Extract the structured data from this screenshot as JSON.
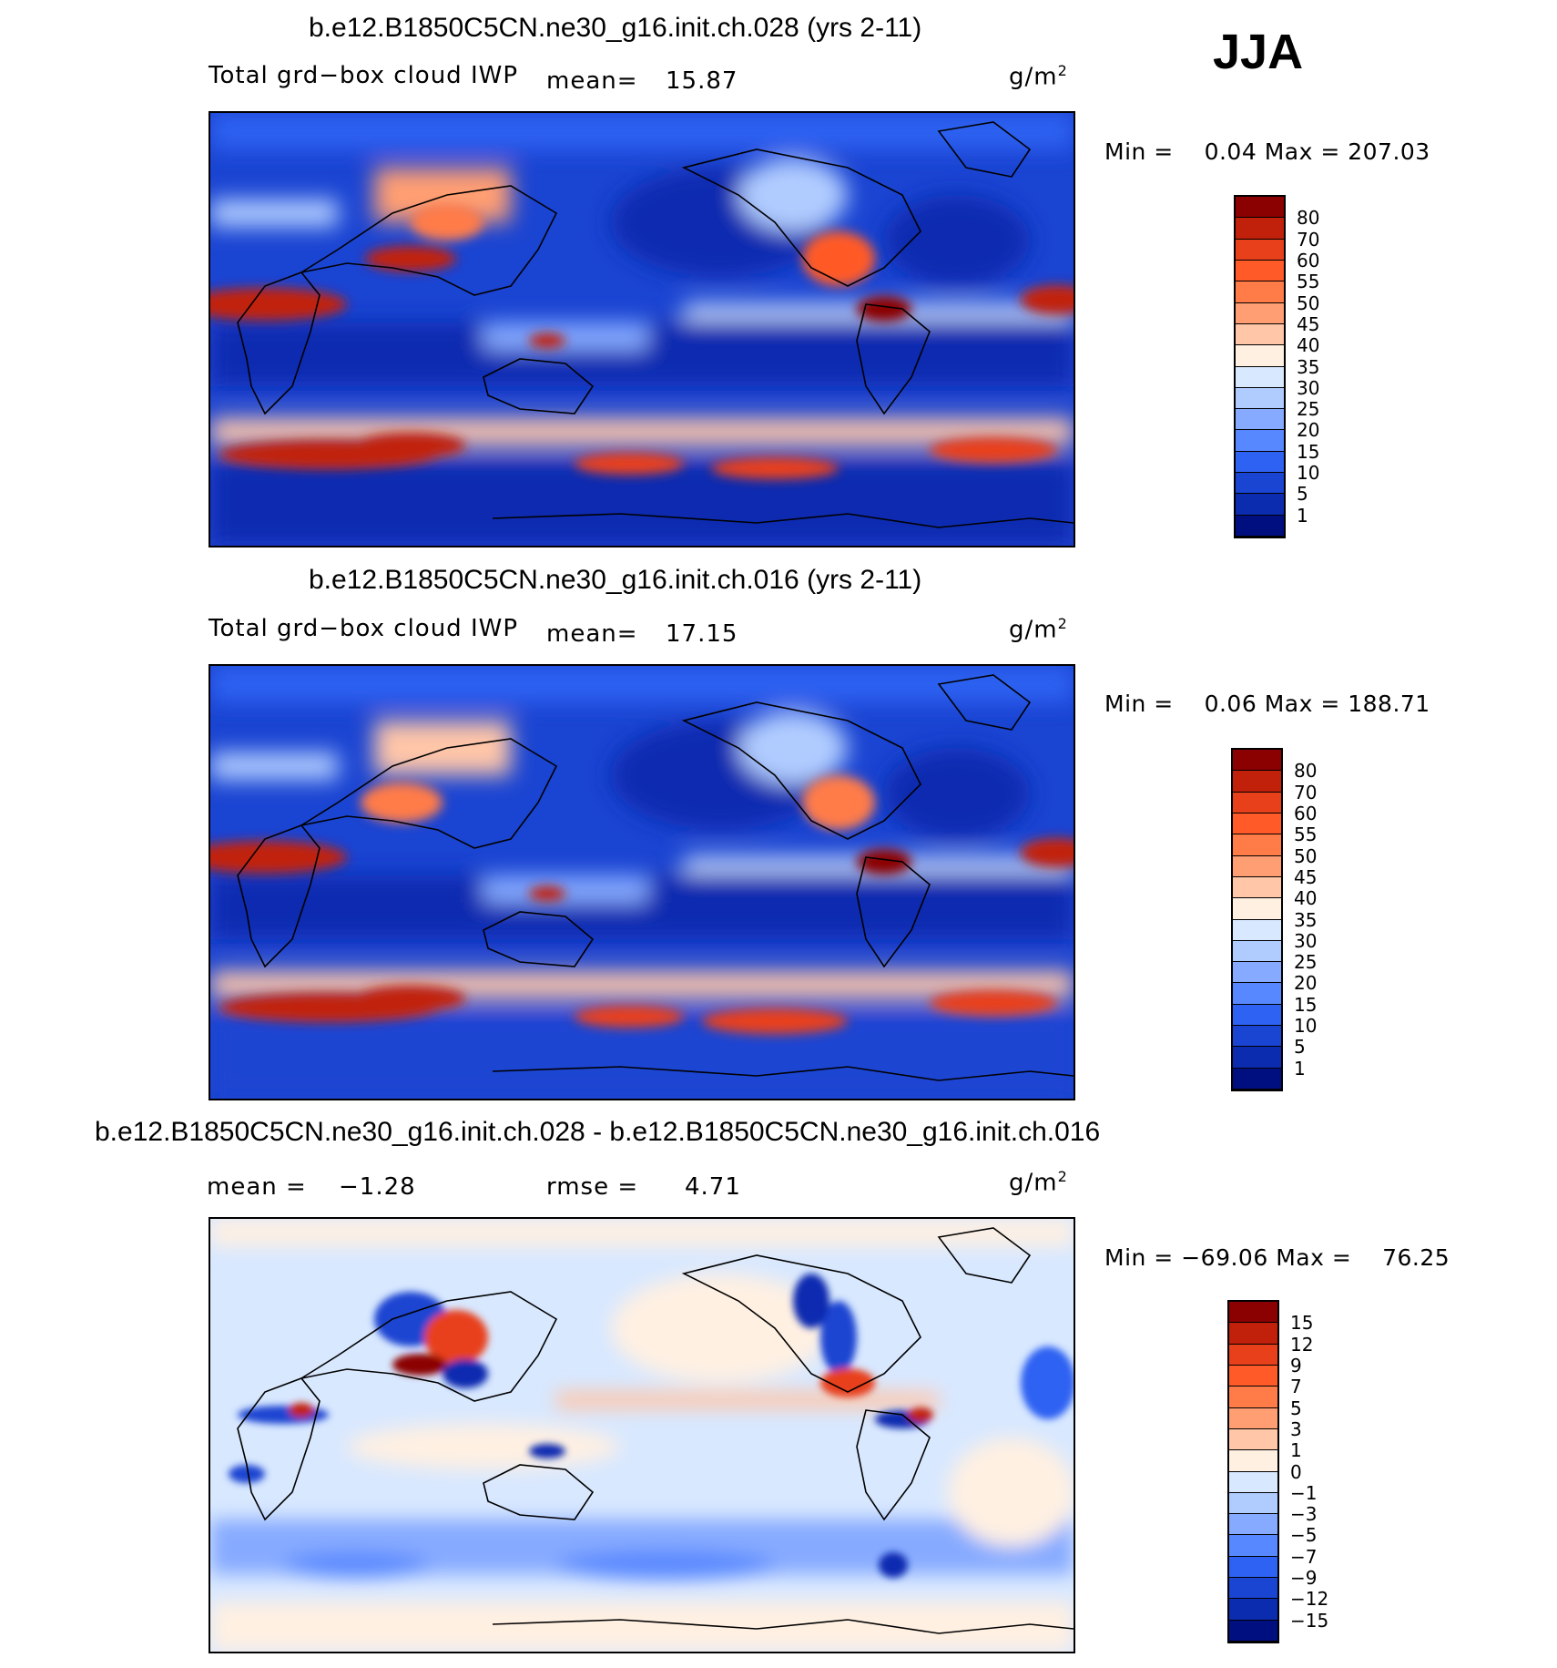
{
  "season": "JJA",
  "panels": [
    {
      "title": "b.e12.B1850C5CN.ne30_g16.init.ch.028 (yrs 2-11)",
      "variable": "Total grd−box cloud IWP",
      "mean_label": "mean=",
      "mean_value": "15.87",
      "stat2_label": "",
      "stat2_value": "",
      "units": "g/m",
      "units_sup": "2",
      "min_label": "Min =",
      "min_value": "0.04",
      "max_label": "Max =",
      "max_value": "207.03"
    },
    {
      "title": "b.e12.B1850C5CN.ne30_g16.init.ch.016 (yrs 2-11)",
      "variable": "Total grd−box cloud IWP",
      "mean_label": "mean=",
      "mean_value": "17.15",
      "stat2_label": "",
      "stat2_value": "",
      "units": "g/m",
      "units_sup": "2",
      "min_label": "Min =",
      "min_value": "0.06",
      "max_label": "Max =",
      "max_value": "188.71"
    },
    {
      "title": "b.e12.B1850C5CN.ne30_g16.init.ch.028 - b.e12.B1850C5CN.ne30_g16.init.ch.016",
      "variable": "",
      "mean_label": "mean =",
      "mean_value": "−1.28",
      "stat2_label": "rmse =",
      "stat2_value": "4.71",
      "units": "g/m",
      "units_sup": "2",
      "min_label": "Min =",
      "min_value": "−69.06",
      "max_label": "Max =",
      "max_value": "76.25"
    }
  ],
  "chart_data": [
    {
      "type": "heatmap",
      "title": "b.e12.B1850C5CN.ne30_g16.init.ch.028 (yrs 2-11)",
      "field": "Total grd-box cloud IWP",
      "units": "g/m2",
      "mean": 15.87,
      "min": 0.04,
      "max": 207.03,
      "colorbar_levels": [
        "80",
        "70",
        "60",
        "55",
        "50",
        "45",
        "40",
        "35",
        "30",
        "25",
        "20",
        "15",
        "10",
        "5",
        "1"
      ],
      "colorbar_colors": [
        "#8b0000",
        "#c1200a",
        "#e8401a",
        "#ff5a28",
        "#ff7c48",
        "#ff9e72",
        "#ffc6a8",
        "#fff0e2",
        "#d8e8ff",
        "#b0ccff",
        "#86aaff",
        "#5888ff",
        "#2e62f2",
        "#1a44d2",
        "#0c2cb0",
        "#000f80"
      ]
    },
    {
      "type": "heatmap",
      "title": "b.e12.B1850C5CN.ne30_g16.init.ch.016 (yrs 2-11)",
      "field": "Total grd-box cloud IWP",
      "units": "g/m2",
      "mean": 17.15,
      "min": 0.06,
      "max": 188.71,
      "colorbar_levels": [
        "80",
        "70",
        "60",
        "55",
        "50",
        "45",
        "40",
        "35",
        "30",
        "25",
        "20",
        "15",
        "10",
        "5",
        "1"
      ],
      "colorbar_colors": [
        "#8b0000",
        "#c1200a",
        "#e8401a",
        "#ff5a28",
        "#ff7c48",
        "#ff9e72",
        "#ffc6a8",
        "#fff0e2",
        "#d8e8ff",
        "#b0ccff",
        "#86aaff",
        "#5888ff",
        "#2e62f2",
        "#1a44d2",
        "#0c2cb0",
        "#000f80"
      ]
    },
    {
      "type": "heatmap",
      "title": "b.e12.B1850C5CN.ne30_g16.init.ch.028 - b.e12.B1850C5CN.ne30_g16.init.ch.016",
      "field": "difference",
      "units": "g/m2",
      "mean": -1.28,
      "rmse": 4.71,
      "min": -69.06,
      "max": 76.25,
      "colorbar_levels": [
        "15",
        "12",
        "9",
        "7",
        "5",
        "3",
        "1",
        "0",
        "−1",
        "−3",
        "−5",
        "−7",
        "−9",
        "−12",
        "−15"
      ],
      "colorbar_colors": [
        "#8b0000",
        "#c1200a",
        "#e8401a",
        "#ff5a28",
        "#ff7c48",
        "#ff9e72",
        "#ffc6a8",
        "#fff0e2",
        "#d8e8ff",
        "#b0ccff",
        "#86aaff",
        "#5888ff",
        "#2e62f2",
        "#1a44d2",
        "#0c2cb0",
        "#000f80"
      ]
    }
  ]
}
